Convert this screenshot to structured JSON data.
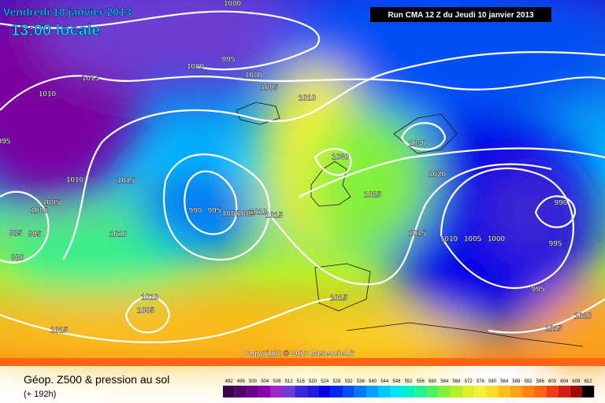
{
  "header": {
    "date": "Vendredi 18 janvier 2013",
    "time": "13:00 locale",
    "run": "Run CMA 12 Z du Jeudi 10 janvier 2013"
  },
  "copyright": "Copyright © 2013 Meteociel.fr",
  "footer": {
    "title": "Géop. Z500 & pression au sol",
    "subtitle": "(+ 192h)"
  },
  "isobar_labels": [
    "1000",
    "995",
    "1000",
    "1015",
    "1010",
    "1000",
    "1005",
    "1010",
    "995",
    "1030",
    "1030",
    "1020",
    "1010",
    "1015",
    "1025",
    "990",
    "995",
    "1000",
    "1005",
    "1010",
    "1015",
    "1005",
    "1000",
    "990",
    "985",
    "995",
    "1010",
    "1015",
    "1010",
    "1005",
    "1000",
    "995",
    "980",
    "995",
    "1015",
    "1010",
    "1005",
    "1015",
    "1015",
    "1020"
  ],
  "legend": {
    "labels": [
      "492",
      "496",
      "500",
      "504",
      "508",
      "512",
      "516",
      "520",
      "524",
      "528",
      "532",
      "536",
      "540",
      "544",
      "548",
      "552",
      "556",
      "560",
      "564",
      "568",
      "572",
      "576",
      "580",
      "584",
      "588",
      "592",
      "596",
      "600",
      "604",
      "608",
      "612"
    ],
    "colors": [
      "#3c0050",
      "#55006e",
      "#6e0090",
      "#8a00b0",
      "#9a28c8",
      "#6e3cd2",
      "#3c28d2",
      "#1e1edc",
      "#0000e6",
      "#0028f0",
      "#0050f5",
      "#0078fa",
      "#00a0ff",
      "#00c8ff",
      "#00e6f0",
      "#00f0c8",
      "#28f096",
      "#50f064",
      "#82f03c",
      "#b4f028",
      "#dcf028",
      "#f5f03c",
      "#ffdc28",
      "#ffbe1e",
      "#ffa01e",
      "#ff8214",
      "#ff6414",
      "#f03c14",
      "#d21e14",
      "#a00a0a",
      "#000000"
    ]
  }
}
